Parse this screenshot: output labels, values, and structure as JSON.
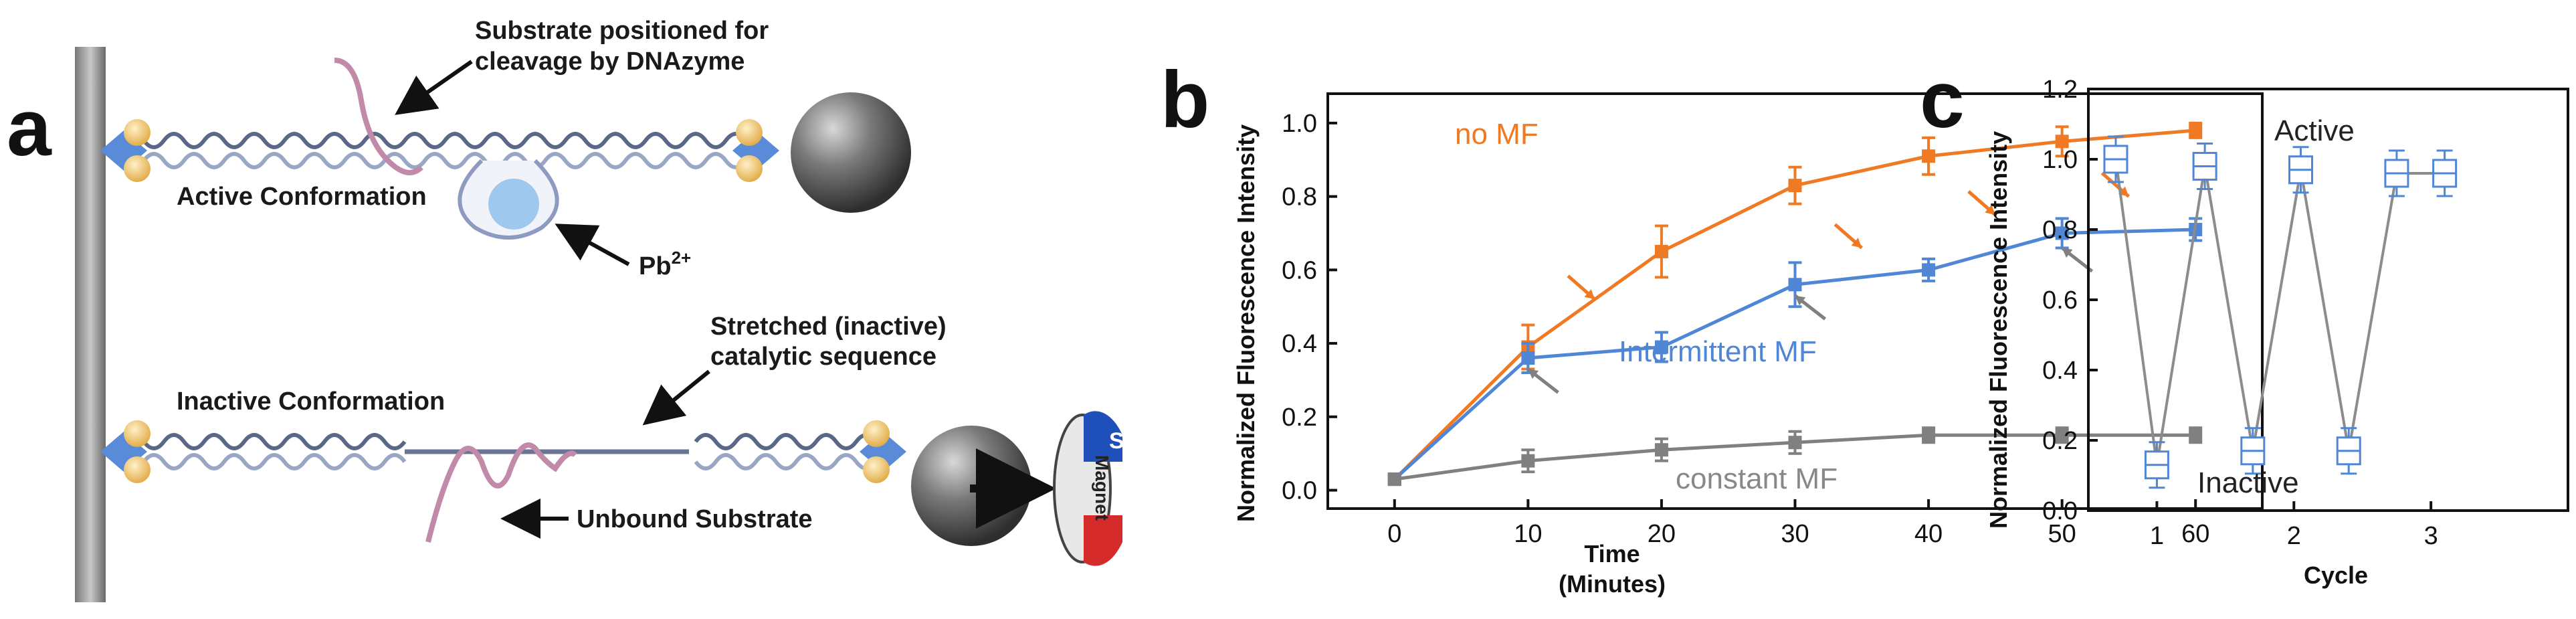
{
  "panels": {
    "a": {
      "letter": "a",
      "substrate_label_line1": "Substrate positioned for",
      "substrate_label_line2": "cleavage by DNAzyme",
      "active_label": "Active Conformation",
      "pb_label": "Pb",
      "pb_charge": "2+",
      "stretched_label_line1": "Stretched (inactive)",
      "stretched_label_line2": "catalytic sequence",
      "inactive_label": "Inactive Conformation",
      "unbound_label": "Unbound Substrate",
      "magnet_label": "Magnet",
      "magnet_pole": "S"
    },
    "b": {
      "letter": "b"
    },
    "c": {
      "letter": "c"
    }
  },
  "colors": {
    "no_mf": "#f07a24",
    "intermittent": "#4f86d6",
    "constant": "#808080",
    "cycle_line": "#8c8c8c",
    "cycle_box": "#4f86d6"
  },
  "chart_data": [
    {
      "id": "b",
      "type": "line",
      "xlabel_line1": "Time",
      "xlabel_line2": "(Minutes)",
      "ylabel": "Normalized Fluorescence Intensity",
      "xlim": [
        -5,
        65
      ],
      "ylim": [
        -0.05,
        1.08
      ],
      "xticks": [
        0,
        10,
        20,
        30,
        40,
        50,
        60
      ],
      "yticks": [
        0.0,
        0.2,
        0.4,
        0.6,
        0.8,
        1.0
      ],
      "ytick_labels": [
        "0.0",
        "0.2",
        "0.4",
        "0.6",
        "0.8",
        "1.0"
      ],
      "series": [
        {
          "name": "no MF",
          "color": "#f07a24",
          "x": [
            0,
            10,
            20,
            30,
            40,
            50,
            60
          ],
          "values": [
            0.03,
            0.39,
            0.65,
            0.83,
            0.91,
            0.95,
            0.98
          ],
          "err": [
            0.01,
            0.06,
            0.07,
            0.05,
            0.05,
            0.04,
            0.02
          ]
        },
        {
          "name": "Intermittent MF",
          "color": "#4f86d6",
          "x": [
            0,
            10,
            20,
            30,
            40,
            50,
            60
          ],
          "values": [
            0.03,
            0.36,
            0.39,
            0.56,
            0.6,
            0.7,
            0.71
          ],
          "err": [
            0.01,
            0.04,
            0.04,
            0.06,
            0.03,
            0.04,
            0.03
          ]
        },
        {
          "name": "constant MF",
          "color": "#808080",
          "x": [
            0,
            10,
            20,
            30,
            40,
            50,
            60
          ],
          "values": [
            0.03,
            0.08,
            0.11,
            0.13,
            0.15,
            0.15,
            0.15
          ],
          "err": [
            0.01,
            0.03,
            0.03,
            0.03,
            0.02,
            0.02,
            0.02
          ]
        }
      ],
      "orange_arrow_targets": [
        [
          15,
          0.52
        ],
        [
          35,
          0.66
        ],
        [
          45,
          0.75
        ],
        [
          55,
          0.8
        ]
      ],
      "gray_arrow_targets": [
        [
          10,
          0.33
        ],
        [
          30,
          0.53
        ],
        [
          50,
          0.66
        ]
      ],
      "legend_labels": {
        "no_mf": "no MF",
        "intermittent": "Intermittent MF",
        "constant": "constant MF"
      }
    },
    {
      "id": "c",
      "type": "line",
      "xlabel": "Cycle",
      "ylabel": "Normalized Fluorescence Intensity",
      "xlim": [
        0.5,
        4.0
      ],
      "ylim": [
        0.0,
        1.2
      ],
      "xticks": [
        1,
        2,
        3
      ],
      "xtick_labels": [
        "1",
        "2",
        "3"
      ],
      "yticks": [
        0.0,
        0.2,
        0.4,
        0.6,
        0.8,
        1.0,
        1.2
      ],
      "ytick_labels": [
        "0.0",
        "0.2",
        "0.4",
        "0.6",
        "0.8",
        "1.0",
        "1.2"
      ],
      "x": [
        0.7,
        1.0,
        1.35,
        1.7,
        2.05,
        2.4,
        2.75,
        3.1
      ],
      "values": [
        1.0,
        0.13,
        0.98,
        0.17,
        0.97,
        0.17,
        0.96,
        0.96
      ],
      "active_label": "Active",
      "inactive_label": "Inactive"
    }
  ]
}
